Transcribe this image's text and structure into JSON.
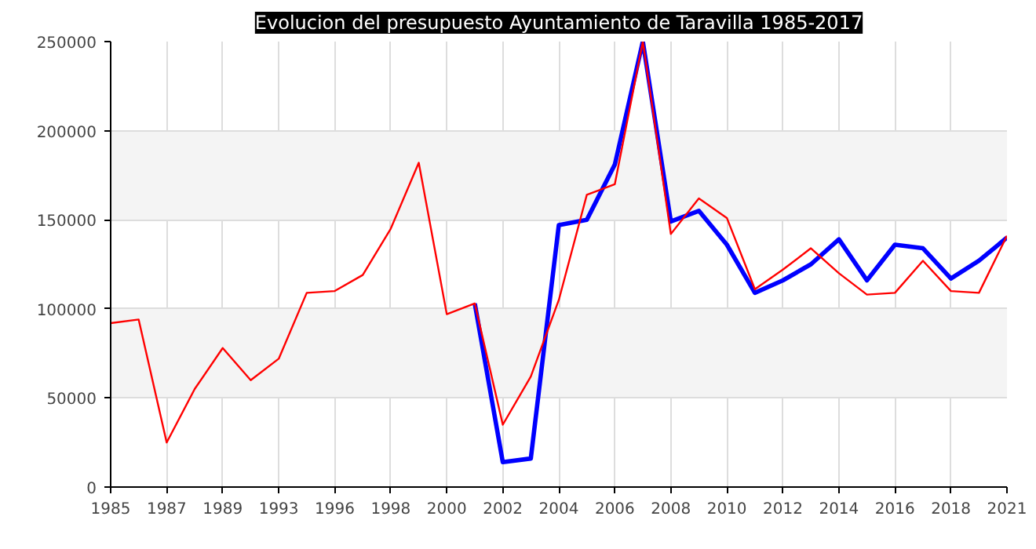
{
  "chart_data": {
    "type": "line",
    "title": "Evolucion del presupuesto Ayuntamiento de Taravilla 1985-2017",
    "categories": [
      "1985",
      null,
      "1987",
      null,
      "1989",
      null,
      "1993",
      null,
      "1996",
      null,
      "1998",
      null,
      "2000",
      null,
      "2002",
      null,
      "2004",
      null,
      "2006",
      null,
      "2008",
      null,
      "2010",
      null,
      "2012",
      null,
      "2014",
      null,
      "2016",
      null,
      "2018",
      null,
      "2021"
    ],
    "series": [
      {
        "color": "#0000ff",
        "values": [
          null,
          null,
          null,
          null,
          null,
          null,
          null,
          null,
          null,
          null,
          null,
          null,
          null,
          103000,
          14000,
          16000,
          147000,
          150000,
          181000,
          250000,
          149000,
          155000,
          136000,
          109000,
          116000,
          125000,
          139000,
          116000,
          136000,
          134000,
          117000,
          127000,
          140000
        ]
      },
      {
        "color": "#ff0000",
        "values": [
          92000,
          94000,
          25000,
          55000,
          78000,
          60000,
          72000,
          109000,
          110000,
          119000,
          145000,
          182000,
          97000,
          103000,
          35000,
          62000,
          105000,
          164000,
          170000,
          250000,
          142000,
          162000,
          151000,
          111000,
          122000,
          134000,
          120000,
          108000,
          109000,
          127000,
          110000,
          109000,
          141000
        ]
      }
    ],
    "ylim": [
      0,
      250000
    ],
    "yticks": [
      0,
      50000,
      100000,
      150000,
      200000,
      250000
    ],
    "grid": true,
    "marker": "none",
    "line_style": "solid"
  }
}
